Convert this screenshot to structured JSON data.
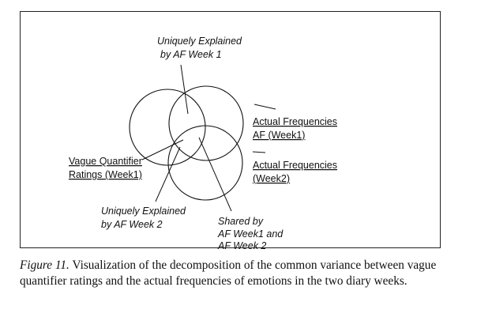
{
  "diagram": {
    "label_uniquely_af1": [
      "Uniquely Explained",
      "by AF Week 1"
    ],
    "label_af_week1": [
      "Actual Frequencies",
      "AF (Week1)"
    ],
    "label_vague_quantifier": [
      "Vague Quantifier",
      "Ratings (Week1)"
    ],
    "label_af_week2": [
      "Actual Frequencies",
      "(Week2)"
    ],
    "label_uniquely_af2": [
      "Uniquely Explained",
      "by AF Week 2"
    ],
    "label_shared": [
      "Shared by",
      "AF Week1 and",
      "AF Week 2"
    ]
  },
  "caption": {
    "label": "Figure 11.",
    "text": " Visualization of the decomposition of the common variance between vague quantifier ratings and the actual frequencies of emotions in the two diary weeks."
  }
}
